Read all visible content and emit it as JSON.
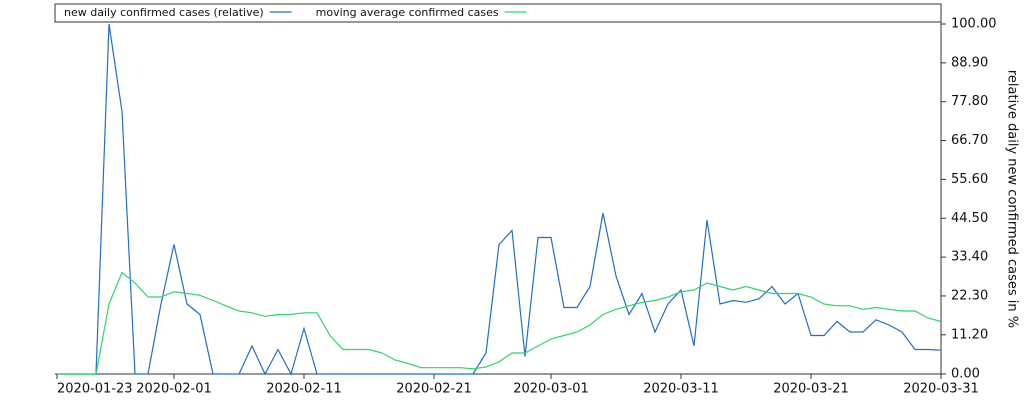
{
  "chart_data": {
    "type": "line",
    "y_label": "relative daily new confirmed cases in %",
    "x": [
      "2020-01-23",
      "2020-01-24",
      "2020-01-25",
      "2020-01-26",
      "2020-01-27",
      "2020-01-28",
      "2020-01-29",
      "2020-01-30",
      "2020-01-31",
      "2020-02-01",
      "2020-02-02",
      "2020-02-03",
      "2020-02-04",
      "2020-02-05",
      "2020-02-06",
      "2020-02-07",
      "2020-02-08",
      "2020-02-09",
      "2020-02-10",
      "2020-02-11",
      "2020-02-12",
      "2020-02-13",
      "2020-02-14",
      "2020-02-15",
      "2020-02-16",
      "2020-02-17",
      "2020-02-18",
      "2020-02-19",
      "2020-02-20",
      "2020-02-21",
      "2020-02-22",
      "2020-02-23",
      "2020-02-24",
      "2020-02-25",
      "2020-02-26",
      "2020-02-27",
      "2020-02-28",
      "2020-02-29",
      "2020-03-01",
      "2020-03-02",
      "2020-03-03",
      "2020-03-04",
      "2020-03-05",
      "2020-03-06",
      "2020-03-07",
      "2020-03-08",
      "2020-03-09",
      "2020-03-10",
      "2020-03-11",
      "2020-03-12",
      "2020-03-13",
      "2020-03-14",
      "2020-03-15",
      "2020-03-16",
      "2020-03-17",
      "2020-03-18",
      "2020-03-19",
      "2020-03-20",
      "2020-03-21",
      "2020-03-22",
      "2020-03-23",
      "2020-03-24",
      "2020-03-25",
      "2020-03-26",
      "2020-03-27",
      "2020-03-28",
      "2020-03-29",
      "2020-03-30",
      "2020-03-31"
    ],
    "series": [
      {
        "name": "new daily confirmed cases (relative)",
        "color": "#1f6fc6",
        "values": [
          0,
          0,
          0,
          0,
          100,
          75,
          0,
          0,
          20,
          37,
          20,
          17,
          0,
          0,
          0,
          8,
          0,
          7,
          0,
          13,
          0,
          0,
          0,
          0,
          0,
          0,
          0,
          0,
          0,
          0,
          0,
          0,
          0,
          6,
          37,
          41,
          5,
          39,
          39,
          19,
          19,
          25,
          46,
          28,
          17,
          23,
          12,
          20,
          24,
          8,
          44,
          20,
          21,
          20.5,
          21.5,
          25,
          20,
          23,
          11,
          11,
          15,
          12,
          12,
          15.5,
          14,
          12,
          7,
          7,
          6.8
        ]
      },
      {
        "name": "moving average confirmed cases",
        "color": "#2fd46a",
        "values": [
          0,
          0,
          0,
          0,
          20,
          29,
          26,
          22,
          22,
          23.5,
          23,
          22.5,
          21,
          19.5,
          18,
          17.5,
          16.5,
          17,
          17,
          17.5,
          17.5,
          11,
          7,
          7,
          7,
          6,
          4,
          3,
          1.8,
          1.8,
          1.8,
          1.8,
          1.5,
          2,
          3.5,
          6,
          6,
          8,
          10,
          11,
          12,
          14,
          17,
          18.5,
          19.5,
          20.5,
          21,
          22,
          23.5,
          24,
          26,
          25,
          24,
          25,
          24,
          23,
          23,
          23,
          22,
          20,
          19.5,
          19.5,
          18.5,
          19,
          18.5,
          18,
          18,
          16,
          15
        ]
      }
    ],
    "xlim": [
      "2020-01-23",
      "2020-03-31"
    ],
    "xticks": [
      "2020-01-23",
      "2020-02-01",
      "2020-02-11",
      "2020-02-21",
      "2020-03-01",
      "2020-03-11",
      "2020-03-21",
      "2020-03-31"
    ],
    "ylim": [
      0,
      100
    ],
    "yticks": [
      {
        "value": 0,
        "label": "0.00"
      },
      {
        "value": 11.2,
        "label": "11.20"
      },
      {
        "value": 22.3,
        "label": "22.30"
      },
      {
        "value": 33.4,
        "label": "33.40"
      },
      {
        "value": 44.5,
        "label": "44.50"
      },
      {
        "value": 55.6,
        "label": "55.60"
      },
      {
        "value": 66.7,
        "label": "66.70"
      },
      {
        "value": 77.8,
        "label": "77.80"
      },
      {
        "value": 88.9,
        "label": "88.90"
      },
      {
        "value": 100,
        "label": "100.00"
      }
    ],
    "y_axis_side": "right",
    "grid": false
  }
}
